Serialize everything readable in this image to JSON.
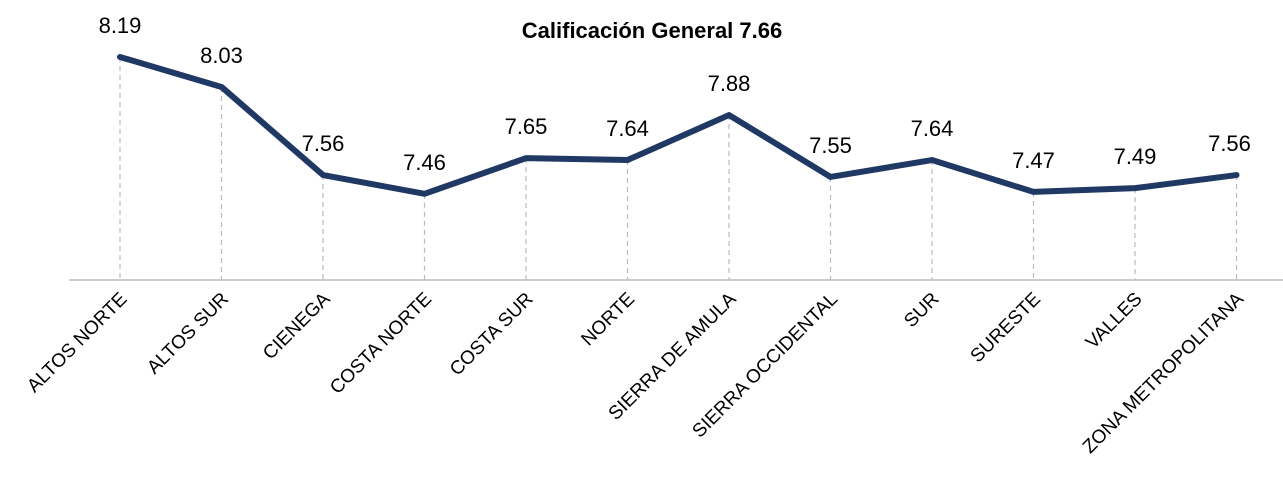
{
  "chart_data": {
    "type": "line",
    "title": "Calificación General 7.66",
    "categories": [
      "ALTOS NORTE",
      "ALTOS SUR",
      "CIENEGA",
      "COSTA NORTE",
      "COSTA SUR",
      "NORTE",
      "SIERRA DE AMULA",
      "SIERRA OCCIDENTAL",
      "SUR",
      "SURESTE",
      "VALLES",
      "ZONA METROPOLITANA"
    ],
    "series": [
      {
        "name": "Calificación",
        "color": "#1f3864",
        "values": [
          8.19,
          8.03,
          7.56,
          7.46,
          7.65,
          7.64,
          7.88,
          7.55,
          7.64,
          7.47,
          7.49,
          7.56
        ]
      }
    ],
    "ylim": [
      7.0,
      8.4
    ]
  }
}
